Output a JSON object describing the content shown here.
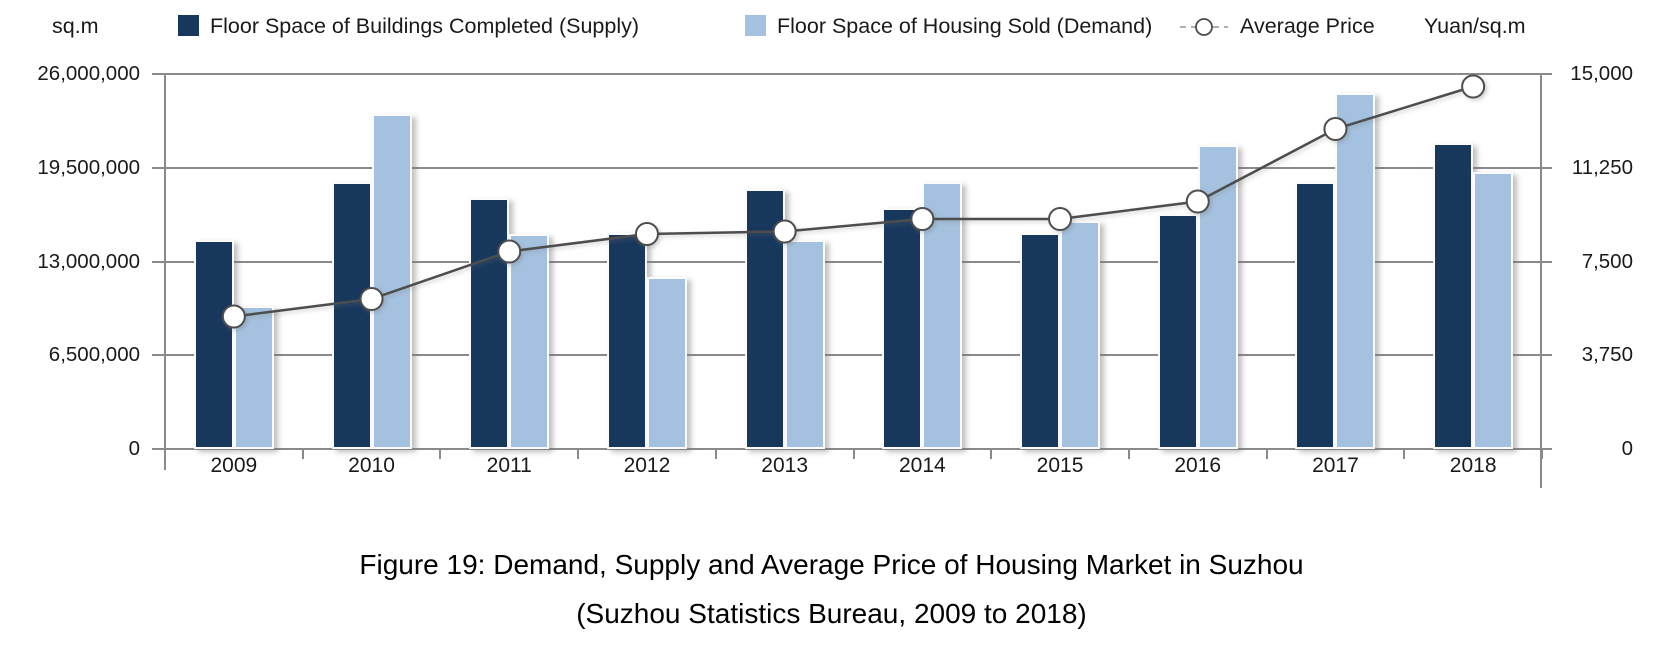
{
  "legend": {
    "left_unit": "sq.m",
    "right_unit": "Yuan/sq.m",
    "items": [
      {
        "label": "Floor Space of Buildings Completed (Supply)",
        "swatch": "dark-blue-square",
        "color": "#17375D"
      },
      {
        "label": "Floor Space of Housing Sold (Demand)",
        "swatch": "light-blue-square",
        "color": "#A4C2E0"
      },
      {
        "label": "Average Price",
        "swatch": "white-circle-line-marker",
        "color": "#4D4D4D"
      }
    ]
  },
  "caption": {
    "line1": "Figure 19: Demand, Supply and Average Price of Housing Market in Suzhou",
    "line2": "(Suzhou Statistics Bureau, 2009 to 2018)"
  },
  "chart_data": {
    "type": "bar",
    "title": "Demand, Supply and Average Price of Housing Market in Suzhou",
    "subtitle": "Suzhou Statistics Bureau, 2009 to 2018",
    "categories": [
      "2009",
      "2010",
      "2011",
      "2012",
      "2013",
      "2014",
      "2015",
      "2016",
      "2017",
      "2018"
    ],
    "series": [
      {
        "name": "Floor Space of Buildings Completed (Supply)",
        "type": "bar",
        "axis": "left",
        "color": "#17375D",
        "values": [
          14500000,
          18500000,
          17400000,
          15000000,
          18000000,
          16700000,
          15000000,
          16300000,
          18500000,
          21200000
        ]
      },
      {
        "name": "Floor Space of Housing Sold (Demand)",
        "type": "bar",
        "axis": "left",
        "color": "#A4C2E0",
        "values": [
          9900000,
          23200000,
          14900000,
          11900000,
          14500000,
          18500000,
          15800000,
          21100000,
          24700000,
          19200000
        ]
      },
      {
        "name": "Average Price",
        "type": "line",
        "axis": "right",
        "color": "#4D4D4D",
        "marker": "white-circle",
        "values": [
          5300,
          6000,
          7900,
          8600,
          8700,
          9200,
          9200,
          9900,
          12800,
          14500
        ]
      }
    ],
    "left_axis": {
      "unit": "sq.m",
      "min": 0,
      "max": 26000000,
      "tick_values": [
        26000000,
        19500000,
        13000000,
        6500000,
        0
      ],
      "tick_labels": [
        "26,000,000",
        "19,500,000",
        "13,000,000",
        "6,500,000",
        "0"
      ]
    },
    "right_axis": {
      "unit": "Yuan/sq.m",
      "min": 0,
      "max": 15000,
      "tick_values": [
        15000,
        11250,
        7500,
        3750,
        0
      ],
      "tick_labels": [
        "15,000",
        "11,250",
        "7,500",
        "3,750",
        "0"
      ]
    },
    "xlabel": "",
    "grid": true,
    "legend_position": "top"
  }
}
